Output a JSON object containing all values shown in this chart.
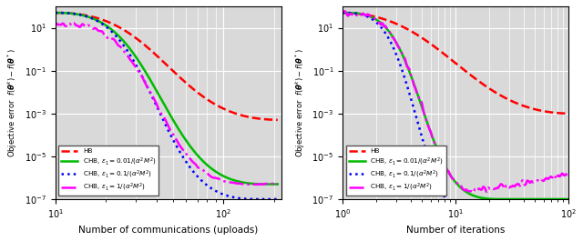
{
  "left_xlabel": "Number of communications (uploads)",
  "right_xlabel": "Number of iterations",
  "ylabel": "Objective error  $f(\\boldsymbol{\\theta}^k)- f(\\boldsymbol{\\theta}^*)$",
  "ylim": [
    1e-07,
    100.0
  ],
  "left_xlim": [
    10,
    220
  ],
  "right_xlim": [
    1,
    100
  ],
  "legend_labels": [
    "HB",
    "CHB, $\\epsilon_1=0.01/(\\alpha^2 M^2)$",
    "CHB, $\\epsilon_1=0.1/(\\alpha^2 M^2)$",
    "CHB, $\\epsilon_1=1/(\\alpha^2 M^2)$"
  ],
  "colors": [
    "#ff0000",
    "#00bb00",
    "#0000ff",
    "#ff00ff"
  ],
  "linestyles": [
    "--",
    "-",
    ":",
    "-."
  ],
  "linewidths": [
    1.8,
    1.8,
    1.8,
    1.8
  ],
  "bg_color": "#d9d9d9",
  "grid_color": "white"
}
